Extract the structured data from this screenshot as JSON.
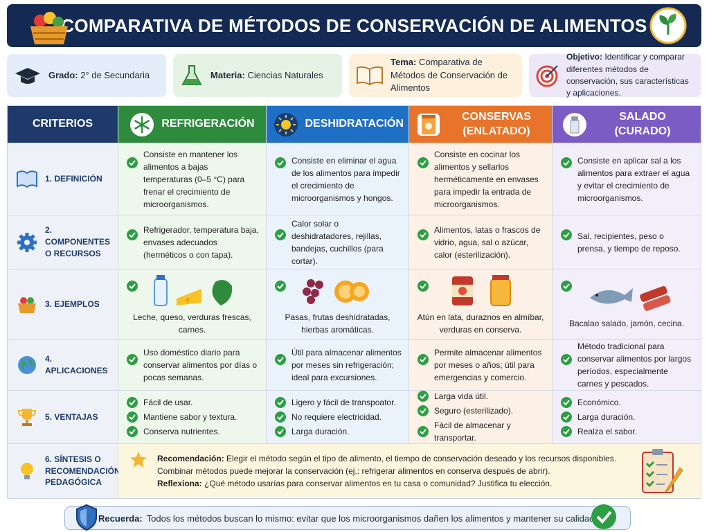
{
  "header": {
    "title": "COMPARATIVA DE MÉTODOS DE CONSERVACIÓN DE ALIMENTOS"
  },
  "info": [
    {
      "label": "Grado:",
      "text": "2° de Secundaria"
    },
    {
      "label": "Materia:",
      "text": "Ciencias Naturales"
    },
    {
      "label": "Tema:",
      "text": "Comparativa de Métodos de Conservación de Alimentos"
    },
    {
      "label": "Objetivo:",
      "text": "Identificar y comparar diferentes métodos de conservación, sus características y aplicaciones."
    }
  ],
  "table": {
    "corner": "CRITERIOS",
    "columns": [
      "REFRIGERACIÓN",
      "DESHIDRATACIÓN",
      "CONSERVAS (ENLATADO)",
      "SALADO (CURADO)"
    ],
    "rows": [
      {
        "label": "1. DEFINICIÓN",
        "cells": [
          "Consiste en mantener los alimentos a bajas temperaturas (0–5 °C) para frenar el crecimiento de microorganismos.",
          "Consiste en eliminar el agua de los alimentos para impedir el crecimiento de microorganismos y hongos.",
          "Consiste en cocinar los alimentos y sellarlos herméticamente en envases para impedir la entrada de microorganismos.",
          "Consiste en aplicar sal a los alimentos para extraer el agua y evitar el crecimiento de microorganismos."
        ]
      },
      {
        "label": "2. COMPONENTES O RECURSOS",
        "cells": [
          "Refrigerador, temperatura baja, envases adecuados (herméticos o con tapa).",
          "Calor solar o deshidratadores, rejillas, bandejas, cuchillos (para cortar).",
          "Alimentos, latas o frascos de vidrio, agua, sal o azúcar, calor (esterilización).",
          "Sal, recipientes, peso o prensa, y tiempo de reposo."
        ]
      },
      {
        "label": "3. EJEMPLOS",
        "cells": [
          "Leche, queso, verduras frescas, carnes.",
          "Pasas, frutas deshidratadas, hierbas aromáticas.",
          "Atún en lata, duraznos en almíbar, verduras en conserva.",
          "Bacalao salado, jamón, cecina."
        ]
      },
      {
        "label": "4. APLICACIONES",
        "cells": [
          "Uso doméstico diario para conservar alimentos por días o pocas semanas.",
          "Útil para almacenar alimentos por meses sin refrigeración; ideal para excursiones.",
          "Permite almacenar alimentos por meses o años; útil para emergencias y comercio.",
          "Método tradicional para conservar alimentos por largos períodos, especialmente carnes y pescados."
        ]
      },
      {
        "label": "5. VENTAJAS",
        "cells": [
          [
            "Fácil de usar.",
            "Mantiene sabor y textura.",
            "Conserva nutrientes."
          ],
          [
            "Ligero y fácil de transpoator.",
            "No requiere electricidad.",
            "Larga duración."
          ],
          [
            "Larga vida útil.",
            "Seguro (esterilizado).",
            "Fácil de almacenar y transportar."
          ],
          [
            "Económico.",
            "Larga duración.",
            "Realza el sabor."
          ]
        ]
      }
    ],
    "synthesis": {
      "label": "6. SÍNTESIS O RECOMENDACIÓN PEDAGÓGICA",
      "lines": [
        {
          "label": "Recomendación:",
          "text": "Elegir el método según el tipo de alimento, el tiempo de conservación deseado y los recursos disponibles."
        },
        {
          "text": "Combinar métodos puede mejorar la conservación (ej.: refrigerar alimentos en conserva después de abrir)."
        },
        {
          "label": "Reflexiona:",
          "text": "¿Qué método usarías para conservar alimentos en tu casa o comunidad? Justifica tu elección."
        }
      ]
    }
  },
  "footer": {
    "label": "Recuerda:",
    "text": "Todos los métodos buscan lo mismo: evitar que los microorganismos dañen los alimentos y mantener su calidad."
  }
}
